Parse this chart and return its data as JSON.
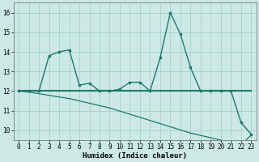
{
  "xlabel": "Humidex (Indice chaleur)",
  "x": [
    0,
    1,
    2,
    3,
    4,
    5,
    6,
    7,
    8,
    9,
    10,
    11,
    12,
    13,
    14,
    15,
    16,
    17,
    18,
    19,
    20,
    21,
    22,
    23
  ],
  "line1_y": [
    12,
    12,
    12,
    13.8,
    14,
    14.1,
    12.3,
    12.4,
    12,
    12,
    12.1,
    12.45,
    12.45,
    12,
    13.7,
    16,
    14.9,
    13.2,
    12,
    12,
    12,
    12,
    10.4,
    9.8
  ],
  "line2_y": [
    12,
    12,
    12,
    12,
    12,
    12,
    12,
    12,
    12,
    12,
    12,
    12,
    12,
    12,
    12,
    12,
    12,
    12,
    12,
    12,
    12,
    12,
    12,
    12
  ],
  "line3_y": [
    12.0,
    11.95,
    11.87,
    11.78,
    11.7,
    11.62,
    11.5,
    11.38,
    11.26,
    11.14,
    10.98,
    10.82,
    10.66,
    10.5,
    10.34,
    10.18,
    10.02,
    9.86,
    9.74,
    9.62,
    9.5,
    9.38,
    9.26,
    9.75
  ],
  "line_color": "#1a7a6e",
  "bg_color": "#cce9e5",
  "grid_color": "#aacfcb",
  "ylim": [
    9.5,
    16.5
  ],
  "xlim": [
    -0.5,
    23.5
  ],
  "yticks": [
    10,
    11,
    12,
    13,
    14,
    15,
    16
  ],
  "xticks": [
    0,
    1,
    2,
    3,
    4,
    5,
    6,
    7,
    8,
    9,
    10,
    11,
    12,
    13,
    14,
    15,
    16,
    17,
    18,
    19,
    20,
    21,
    22,
    23
  ],
  "tick_fontsize": 5.5,
  "xlabel_fontsize": 6.5
}
